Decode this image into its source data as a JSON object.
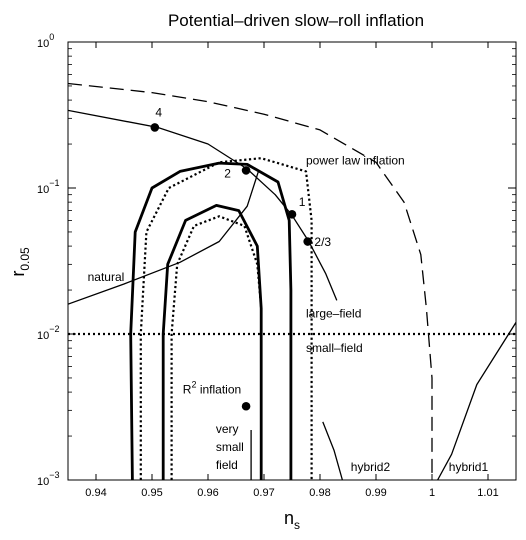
{
  "chart_data": {
    "type": "line",
    "title": "Potential–driven slow–roll inflation",
    "xlabel": "n",
    "xlabel_sub": "s",
    "ylabel": "r",
    "ylabel_sub": "0.05",
    "xlim": [
      0.935,
      1.015
    ],
    "ylim": [
      0.001,
      1.0
    ],
    "yscale": "log",
    "grid": false,
    "x_ticks": [
      {
        "v": 0.94,
        "label": "0.94"
      },
      {
        "v": 0.95,
        "label": "0.95"
      },
      {
        "v": 0.96,
        "label": "0.96"
      },
      {
        "v": 0.97,
        "label": "0.97"
      },
      {
        "v": 0.98,
        "label": "0.98"
      },
      {
        "v": 0.99,
        "label": "0.99"
      },
      {
        "v": 1.0,
        "label": "1"
      },
      {
        "v": 1.01,
        "label": "1.01"
      }
    ],
    "y_ticks": [
      {
        "v": 0.001,
        "base": "10",
        "exp": "−3"
      },
      {
        "v": 0.01,
        "base": "10",
        "exp": "−2"
      },
      {
        "v": 0.1,
        "base": "10",
        "exp": "−1"
      },
      {
        "v": 1.0,
        "base": "10",
        "exp": "0"
      }
    ],
    "series": [
      {
        "id": "power-law",
        "style": "dashed",
        "points": [
          [
            0.935,
            0.52
          ],
          [
            0.95,
            0.45
          ],
          [
            0.96,
            0.39
          ],
          [
            0.97,
            0.32
          ],
          [
            0.98,
            0.25
          ],
          [
            0.99,
            0.15
          ],
          [
            0.995,
            0.08
          ],
          [
            0.998,
            0.035
          ],
          [
            0.999,
            0.015
          ],
          [
            1.0,
            0.005
          ],
          [
            1.0,
            0.001
          ]
        ]
      },
      {
        "id": "large-small-boundary",
        "style": "dotted",
        "points": [
          [
            0.935,
            0.01
          ],
          [
            1.015,
            0.01
          ]
        ]
      },
      {
        "id": "monomial-branch",
        "style": "solid",
        "points": [
          [
            0.935,
            0.34
          ],
          [
            0.951,
            0.26
          ],
          [
            0.96,
            0.2
          ],
          [
            0.967,
            0.135
          ],
          [
            0.972,
            0.09
          ],
          [
            0.975,
            0.065
          ],
          [
            0.978,
            0.043
          ],
          [
            0.981,
            0.026
          ],
          [
            0.983,
            0.017
          ]
        ]
      },
      {
        "id": "natural",
        "style": "solid",
        "points": [
          [
            0.935,
            0.016
          ],
          [
            0.945,
            0.022
          ],
          [
            0.955,
            0.031
          ],
          [
            0.962,
            0.043
          ],
          [
            0.967,
            0.075
          ],
          [
            0.969,
            0.13
          ]
        ]
      },
      {
        "id": "very-small-field",
        "style": "solid",
        "points": [
          [
            0.9677,
            0.0022
          ],
          [
            0.9677,
            0.001
          ]
        ]
      },
      {
        "id": "hybrid2",
        "style": "solid",
        "points": [
          [
            0.9805,
            0.0025
          ],
          [
            0.9825,
            0.0016
          ],
          [
            0.984,
            0.001
          ]
        ]
      },
      {
        "id": "hybrid1",
        "style": "solid",
        "points": [
          [
            1.001,
            0.001
          ],
          [
            1.0035,
            0.0015
          ],
          [
            1.008,
            0.0045
          ],
          [
            1.015,
            0.012
          ]
        ]
      },
      {
        "id": "contour-outer-solid",
        "style": "thick-solid",
        "points": [
          [
            0.9465,
            0.001
          ],
          [
            0.9462,
            0.01
          ],
          [
            0.947,
            0.05
          ],
          [
            0.95,
            0.1
          ],
          [
            0.955,
            0.13
          ],
          [
            0.962,
            0.148
          ],
          [
            0.967,
            0.145
          ],
          [
            0.9725,
            0.11
          ],
          [
            0.9745,
            0.06
          ],
          [
            0.9748,
            0.02
          ],
          [
            0.9748,
            0.001
          ]
        ]
      },
      {
        "id": "contour-outer-dotted",
        "style": "thick-dotted",
        "points": [
          [
            0.948,
            0.001
          ],
          [
            0.948,
            0.01
          ],
          [
            0.949,
            0.05
          ],
          [
            0.953,
            0.1
          ],
          [
            0.962,
            0.15
          ],
          [
            0.9695,
            0.16
          ],
          [
            0.9775,
            0.13
          ],
          [
            0.9785,
            0.06
          ],
          [
            0.9785,
            0.02
          ],
          [
            0.9785,
            0.001
          ]
        ]
      },
      {
        "id": "contour-inner-solid",
        "style": "thick-solid",
        "points": [
          [
            0.952,
            0.001
          ],
          [
            0.952,
            0.01
          ],
          [
            0.9528,
            0.03
          ],
          [
            0.956,
            0.06
          ],
          [
            0.9615,
            0.076
          ],
          [
            0.9655,
            0.07
          ],
          [
            0.9688,
            0.04
          ],
          [
            0.9695,
            0.015
          ],
          [
            0.9695,
            0.001
          ]
        ]
      },
      {
        "id": "contour-inner-dotted",
        "style": "thick-dotted",
        "points": [
          [
            0.9535,
            0.001
          ],
          [
            0.9535,
            0.01
          ],
          [
            0.9545,
            0.03
          ],
          [
            0.9575,
            0.055
          ],
          [
            0.962,
            0.064
          ],
          [
            0.9665,
            0.055
          ],
          [
            0.9688,
            0.03
          ],
          [
            0.9695,
            0.015
          ],
          [
            0.9695,
            0.001
          ]
        ]
      }
    ],
    "markers": [
      {
        "id": "marker-4",
        "x": 0.9505,
        "y": 0.26
      },
      {
        "id": "marker-2",
        "x": 0.9668,
        "y": 0.132
      },
      {
        "id": "marker-1",
        "x": 0.975,
        "y": 0.066
      },
      {
        "id": "marker-2-3",
        "x": 0.9778,
        "y": 0.043
      },
      {
        "id": "marker-r2",
        "x": 0.9668,
        "y": 0.0032
      }
    ],
    "annotations": [
      {
        "id": "power-law-inflation-label",
        "text": "power law inflation",
        "x": 0.9775,
        "y": 0.145
      },
      {
        "id": "natural-label",
        "text": "natural",
        "x": 0.9385,
        "y": 0.023
      },
      {
        "id": "large-field-label",
        "text": "large–field",
        "x": 0.9775,
        "y": 0.013
      },
      {
        "id": "small-field-label",
        "text": "small–field",
        "x": 0.9775,
        "y": 0.0075
      },
      {
        "id": "hybrid2-label",
        "text": "hybrid2",
        "x": 0.9855,
        "y": 0.00115
      },
      {
        "id": "hybrid1-label",
        "text": "hybrid1",
        "x": 1.003,
        "y": 0.00115
      },
      {
        "id": "very-label",
        "text": "very",
        "x": 0.9614,
        "y": 0.0021
      },
      {
        "id": "small-label",
        "text": "small",
        "x": 0.9614,
        "y": 0.00158
      },
      {
        "id": "field-label",
        "text": "field",
        "x": 0.9614,
        "y": 0.00119
      },
      {
        "id": "label-4",
        "text": "4",
        "x": 0.9506,
        "y": 0.31
      },
      {
        "id": "label-2",
        "text": "2",
        "x": 0.9629,
        "y": 0.118
      },
      {
        "id": "label-1",
        "text": "1",
        "x": 0.9762,
        "y": 0.075
      },
      {
        "id": "label-2-3",
        "text": "2/3",
        "x": 0.979,
        "y": 0.04
      }
    ],
    "r2_label": {
      "base": "R",
      "exp": "2",
      "rest": " inflation",
      "x": 0.9555,
      "y": 0.0039
    }
  }
}
